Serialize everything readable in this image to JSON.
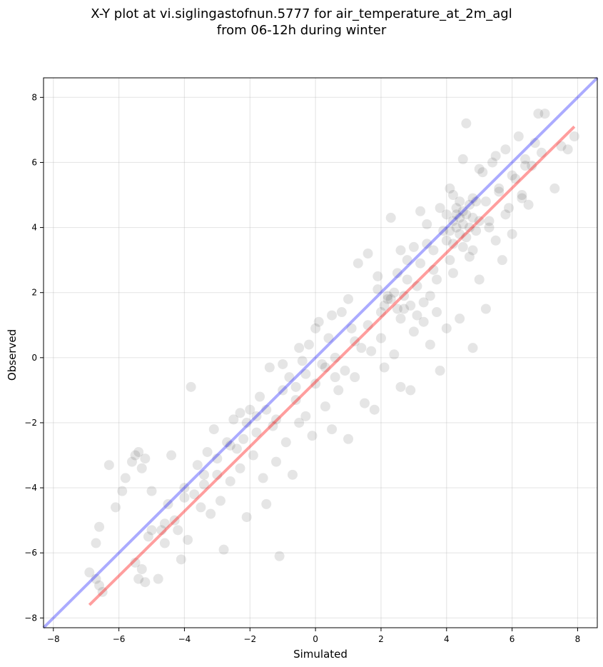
{
  "title": {
    "line1": "X-Y plot at vi.siglingastofnun.5777 for air_temperature_at_2m_agl",
    "line2": "from 06-12h during winter"
  },
  "chart_data": {
    "type": "scatter",
    "xlabel": "Simulated",
    "ylabel": "Observed",
    "xlim": [
      -8.3,
      8.6
    ],
    "ylim": [
      -8.3,
      8.6
    ],
    "xticks": [
      -8,
      -6,
      -4,
      -2,
      0,
      2,
      4,
      6,
      8
    ],
    "yticks": [
      -8,
      -6,
      -4,
      -2,
      0,
      2,
      4,
      6,
      8
    ],
    "grid": true,
    "point_color": "#000000",
    "point_alpha": 0.1,
    "identity_line": {
      "color": "#0000ff",
      "alpha": 0.33,
      "x": [
        -8.3,
        8.6
      ],
      "y": [
        -8.3,
        8.6
      ]
    },
    "fit_line": {
      "color": "#ff0000",
      "alpha": 0.38,
      "x": [
        -6.9,
        7.9
      ],
      "y": [
        -7.6,
        7.1
      ]
    },
    "points": [
      [
        -6.9,
        -6.6
      ],
      [
        -6.7,
        -6.8
      ],
      [
        -6.6,
        -7.0
      ],
      [
        -6.7,
        -5.7
      ],
      [
        -6.6,
        -5.2
      ],
      [
        -6.5,
        -7.2
      ],
      [
        -6.3,
        -3.3
      ],
      [
        -6.1,
        -4.6
      ],
      [
        -5.9,
        -4.1
      ],
      [
        -5.8,
        -3.7
      ],
      [
        -5.6,
        -3.2
      ],
      [
        -5.5,
        -3.0
      ],
      [
        -5.4,
        -2.9
      ],
      [
        -5.3,
        -3.4
      ],
      [
        -5.2,
        -3.1
      ],
      [
        -5.0,
        -4.1
      ],
      [
        -5.5,
        -6.3
      ],
      [
        -5.4,
        -6.8
      ],
      [
        -5.3,
        -6.5
      ],
      [
        -5.2,
        -6.9
      ],
      [
        -5.1,
        -5.5
      ],
      [
        -4.8,
        -6.8
      ],
      [
        -4.7,
        -5.3
      ],
      [
        -4.6,
        -5.7
      ],
      [
        -4.5,
        -4.5
      ],
      [
        -4.4,
        -3.0
      ],
      [
        -4.3,
        -5.0
      ],
      [
        -4.2,
        -5.3
      ],
      [
        -4.1,
        -6.2
      ],
      [
        -4.0,
        -4.0
      ],
      [
        -3.9,
        -5.6
      ],
      [
        -3.8,
        -0.9
      ],
      [
        -3.7,
        -4.2
      ],
      [
        -3.6,
        -3.3
      ],
      [
        -3.5,
        -4.6
      ],
      [
        -3.4,
        -3.9
      ],
      [
        -3.3,
        -2.9
      ],
      [
        -3.2,
        -4.8
      ],
      [
        -3.1,
        -2.2
      ],
      [
        -3.0,
        -3.6
      ],
      [
        -2.9,
        -4.4
      ],
      [
        -2.8,
        -5.9
      ],
      [
        -2.7,
        -2.6
      ],
      [
        -2.6,
        -3.8
      ],
      [
        -2.5,
        -1.9
      ],
      [
        -2.4,
        -2.8
      ],
      [
        -2.3,
        -3.4
      ],
      [
        -2.2,
        -2.5
      ],
      [
        -2.1,
        -4.9
      ],
      [
        -2.0,
        -1.6
      ],
      [
        -1.9,
        -3.0
      ],
      [
        -1.8,
        -2.3
      ],
      [
        -1.7,
        -1.2
      ],
      [
        -1.6,
        -3.7
      ],
      [
        -1.5,
        -4.5
      ],
      [
        -1.4,
        -0.3
      ],
      [
        -1.3,
        -2.1
      ],
      [
        -1.2,
        -3.2
      ],
      [
        -1.1,
        -6.1
      ],
      [
        -1.0,
        -1.0
      ],
      [
        -0.9,
        -2.6
      ],
      [
        -0.8,
        -0.6
      ],
      [
        -0.7,
        -3.6
      ],
      [
        -0.6,
        -1.3
      ],
      [
        -0.5,
        -2.0
      ],
      [
        -0.4,
        -0.1
      ],
      [
        -0.3,
        -1.8
      ],
      [
        -0.2,
        0.4
      ],
      [
        -0.1,
        -2.4
      ],
      [
        0.0,
        -0.8
      ],
      [
        0.1,
        1.1
      ],
      [
        0.2,
        -0.2
      ],
      [
        0.3,
        -1.5
      ],
      [
        0.4,
        0.6
      ],
      [
        0.5,
        -2.2
      ],
      [
        0.6,
        0.0
      ],
      [
        0.7,
        -1.0
      ],
      [
        0.8,
        1.4
      ],
      [
        0.9,
        -0.4
      ],
      [
        1.0,
        -2.5
      ],
      [
        1.1,
        0.9
      ],
      [
        1.2,
        -0.6
      ],
      [
        1.3,
        2.9
      ],
      [
        1.4,
        0.3
      ],
      [
        1.5,
        -1.4
      ],
      [
        1.6,
        3.2
      ],
      [
        1.7,
        0.2
      ],
      [
        1.8,
        -1.6
      ],
      [
        1.9,
        2.1
      ],
      [
        2.0,
        0.6
      ],
      [
        2.1,
        -0.3
      ],
      [
        2.2,
        1.8
      ],
      [
        2.3,
        4.3
      ],
      [
        2.4,
        0.1
      ],
      [
        2.5,
        2.6
      ],
      [
        2.6,
        -0.9
      ],
      [
        2.7,
        1.5
      ],
      [
        2.8,
        3.0
      ],
      [
        2.9,
        -1.0
      ],
      [
        3.0,
        0.8
      ],
      [
        3.1,
        2.2
      ],
      [
        3.2,
        4.5
      ],
      [
        3.3,
        1.1
      ],
      [
        3.4,
        3.5
      ],
      [
        3.5,
        0.4
      ],
      [
        3.6,
        2.7
      ],
      [
        3.7,
        1.4
      ],
      [
        3.8,
        -0.4
      ],
      [
        3.9,
        3.9
      ],
      [
        4.0,
        0.9
      ],
      [
        4.1,
        5.2
      ],
      [
        4.2,
        2.6
      ],
      [
        4.3,
        4.4
      ],
      [
        4.4,
        1.2
      ],
      [
        4.5,
        6.1
      ],
      [
        4.6,
        7.2
      ],
      [
        4.7,
        3.1
      ],
      [
        4.8,
        0.3
      ],
      [
        4.9,
        4.8
      ],
      [
        5.0,
        2.4
      ],
      [
        5.1,
        5.7
      ],
      [
        5.2,
        1.5
      ],
      [
        5.3,
        4.2
      ],
      [
        5.4,
        6.0
      ],
      [
        5.5,
        3.6
      ],
      [
        5.6,
        5.1
      ],
      [
        5.7,
        3.0
      ],
      [
        5.8,
        6.4
      ],
      [
        5.9,
        4.6
      ],
      [
        6.0,
        3.8
      ],
      [
        6.1,
        5.5
      ],
      [
        6.2,
        6.8
      ],
      [
        6.3,
        4.9
      ],
      [
        6.4,
        6.1
      ],
      [
        6.5,
        4.7
      ],
      [
        6.6,
        5.9
      ],
      [
        6.7,
        6.6
      ],
      [
        6.8,
        7.5
      ],
      [
        6.9,
        6.3
      ],
      [
        7.0,
        7.5
      ],
      [
        7.3,
        5.2
      ],
      [
        7.5,
        6.5
      ],
      [
        7.7,
        6.4
      ],
      [
        7.9,
        6.8
      ],
      [
        4.3,
        4.0
      ],
      [
        4.4,
        4.3
      ],
      [
        4.5,
        4.1
      ],
      [
        4.6,
        4.4
      ],
      [
        4.4,
        3.8
      ],
      [
        4.2,
        4.2
      ],
      [
        4.7,
        4.0
      ],
      [
        4.5,
        4.5
      ],
      [
        4.3,
        4.6
      ],
      [
        4.6,
        3.7
      ],
      [
        4.8,
        4.3
      ],
      [
        4.1,
        3.9
      ],
      [
        4.4,
        4.8
      ],
      [
        4.9,
        3.9
      ],
      [
        4.2,
        3.5
      ],
      [
        4.7,
        4.7
      ],
      [
        5.0,
        4.2
      ],
      [
        4.0,
        4.4
      ],
      [
        4.5,
        3.4
      ],
      [
        4.8,
        4.9
      ],
      [
        2.1,
        1.6
      ],
      [
        2.3,
        1.8
      ],
      [
        2.5,
        1.5
      ],
      [
        2.7,
        1.9
      ],
      [
        2.9,
        1.6
      ],
      [
        3.1,
        1.3
      ],
      [
        2.2,
        1.9
      ],
      [
        2.6,
        1.2
      ],
      [
        3.3,
        1.7
      ],
      [
        3.5,
        1.9
      ],
      [
        -1.8,
        -1.8
      ],
      [
        -2.1,
        -2.0
      ],
      [
        -1.5,
        -1.6
      ],
      [
        -2.3,
        -1.7
      ],
      [
        -1.2,
        -1.9
      ],
      [
        -0.3,
        -0.5
      ],
      [
        0.3,
        -0.3
      ],
      [
        0.6,
        -0.6
      ],
      [
        -0.6,
        -0.9
      ],
      [
        1.2,
        0.5
      ],
      [
        1.6,
        1.0
      ],
      [
        2.0,
        1.4
      ],
      [
        2.4,
        2.0
      ],
      [
        2.8,
        2.4
      ],
      [
        3.2,
        2.9
      ],
      [
        3.6,
        3.3
      ],
      [
        4.0,
        3.6
      ],
      [
        5.2,
        4.8
      ],
      [
        5.6,
        5.2
      ],
      [
        6.0,
        5.6
      ],
      [
        6.4,
        5.9
      ],
      [
        -3.4,
        -3.6
      ],
      [
        -3.0,
        -3.1
      ],
      [
        -2.6,
        -2.7
      ],
      [
        -4.0,
        -4.3
      ],
      [
        -4.6,
        -5.1
      ],
      [
        -5.0,
        -5.3
      ],
      [
        1.9,
        2.5
      ],
      [
        2.6,
        3.3
      ],
      [
        3.4,
        4.1
      ],
      [
        3.8,
        4.6
      ],
      [
        4.2,
        5.0
      ],
      [
        5.0,
        5.8
      ],
      [
        5.5,
        6.2
      ],
      [
        -1.0,
        -0.2
      ],
      [
        -0.5,
        0.3
      ],
      [
        0.0,
        0.9
      ],
      [
        0.5,
        1.3
      ],
      [
        1.0,
        1.8
      ],
      [
        3.0,
        3.4
      ],
      [
        3.7,
        2.4
      ],
      [
        4.1,
        3.0
      ],
      [
        4.8,
        3.3
      ],
      [
        5.3,
        4.0
      ],
      [
        5.8,
        4.4
      ],
      [
        6.3,
        5.0
      ]
    ]
  }
}
